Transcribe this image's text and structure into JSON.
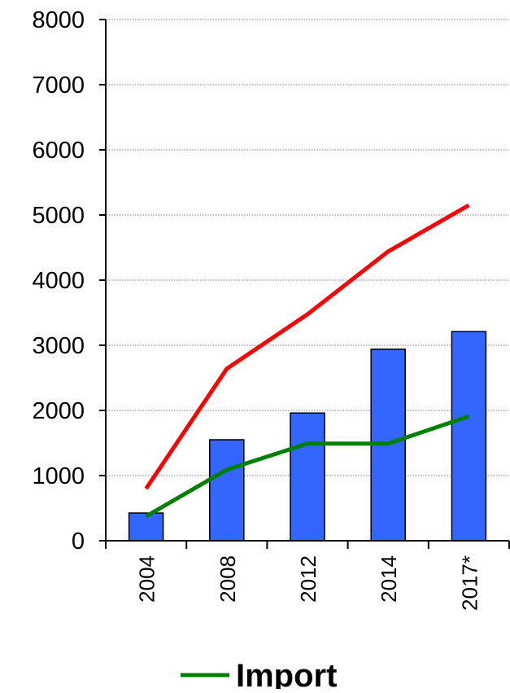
{
  "chart_data": {
    "type": "bar",
    "categories": [
      "2004",
      "2008",
      "2012",
      "2014",
      "2017*"
    ],
    "series": [
      {
        "type": "bar",
        "color": "#3366ff",
        "values": [
          425,
          1550,
          1960,
          2940,
          3210
        ]
      },
      {
        "type": "line",
        "color": "#ff0000",
        "values": [
          800,
          2640,
          3475,
          4440,
          5150
        ]
      },
      {
        "type": "line",
        "name": "Import",
        "color": "#008000",
        "values": [
          375,
          1090,
          1490,
          1490,
          1910
        ]
      }
    ],
    "ylim": [
      0,
      8000
    ],
    "yticks": [
      0,
      1000,
      2000,
      3000,
      4000,
      5000,
      6000,
      7000,
      8000
    ],
    "grid": true,
    "legend": "bottom"
  }
}
